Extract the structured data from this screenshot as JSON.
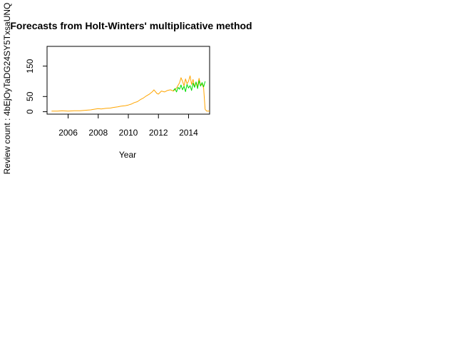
{
  "chart_data": {
    "type": "line",
    "title": "Forecasts from Holt-Winters' multiplicative method",
    "xlabel": "Year",
    "ylabel": "Review count : 4bEjOyTaDG24SY5TxsaUNQ",
    "xlim": [
      2004.6,
      2015.4
    ],
    "ylim": [
      -8,
      215
    ],
    "x_ticks": [
      2006,
      2008,
      2010,
      2012,
      2014
    ],
    "y_ticks": [
      0,
      50,
      150
    ],
    "grid": false,
    "legend": "none",
    "series": [
      {
        "color": "#ffa500",
        "x": [
          2004.9,
          2005.3,
          2005.6,
          2006.0,
          2006.4,
          2006.8,
          2007.2,
          2007.5,
          2007.7,
          2008.0,
          2008.2,
          2008.5,
          2008.8,
          2009.0,
          2009.3,
          2009.5,
          2009.8,
          2010.0,
          2010.2,
          2010.4,
          2010.6,
          2010.8,
          2011.0,
          2011.2,
          2011.4,
          2011.6,
          2011.7,
          2011.9,
          2012.0,
          2012.2,
          2012.4,
          2012.6,
          2012.8,
          2013.0,
          2013.2,
          2013.4,
          2013.5,
          2013.6,
          2013.7,
          2013.8,
          2013.9,
          2014.0,
          2014.1,
          2014.2,
          2014.3,
          2014.4,
          2014.5,
          2014.6,
          2014.7,
          2014.8,
          2014.9,
          2015.0,
          2015.1,
          2015.2,
          2015.4
        ],
        "values": [
          2,
          2,
          3,
          2,
          3,
          3,
          5,
          6,
          8,
          10,
          9,
          11,
          12,
          14,
          16,
          18,
          20,
          22,
          25,
          30,
          33,
          40,
          45,
          52,
          58,
          66,
          72,
          60,
          58,
          68,
          65,
          70,
          72,
          68,
          78,
          95,
          112,
          100,
          85,
          108,
          92,
          100,
          118,
          90,
          106,
          82,
          96,
          84,
          110,
          86,
          92,
          78,
          8,
          2,
          2
        ]
      },
      {
        "color": "#00dd00",
        "x": [
          2013.0,
          2013.1,
          2013.2,
          2013.3,
          2013.4,
          2013.5,
          2013.6,
          2013.7,
          2013.8,
          2013.9,
          2014.0,
          2014.1,
          2014.2,
          2014.3,
          2014.4,
          2014.5,
          2014.6,
          2014.7,
          2014.8,
          2014.9,
          2015.0,
          2015.1
        ],
        "values": [
          70,
          76,
          65,
          80,
          74,
          88,
          72,
          84,
          66,
          90,
          78,
          86,
          70,
          94,
          80,
          98,
          76,
          102,
          84,
          96,
          82,
          100
        ]
      }
    ]
  }
}
